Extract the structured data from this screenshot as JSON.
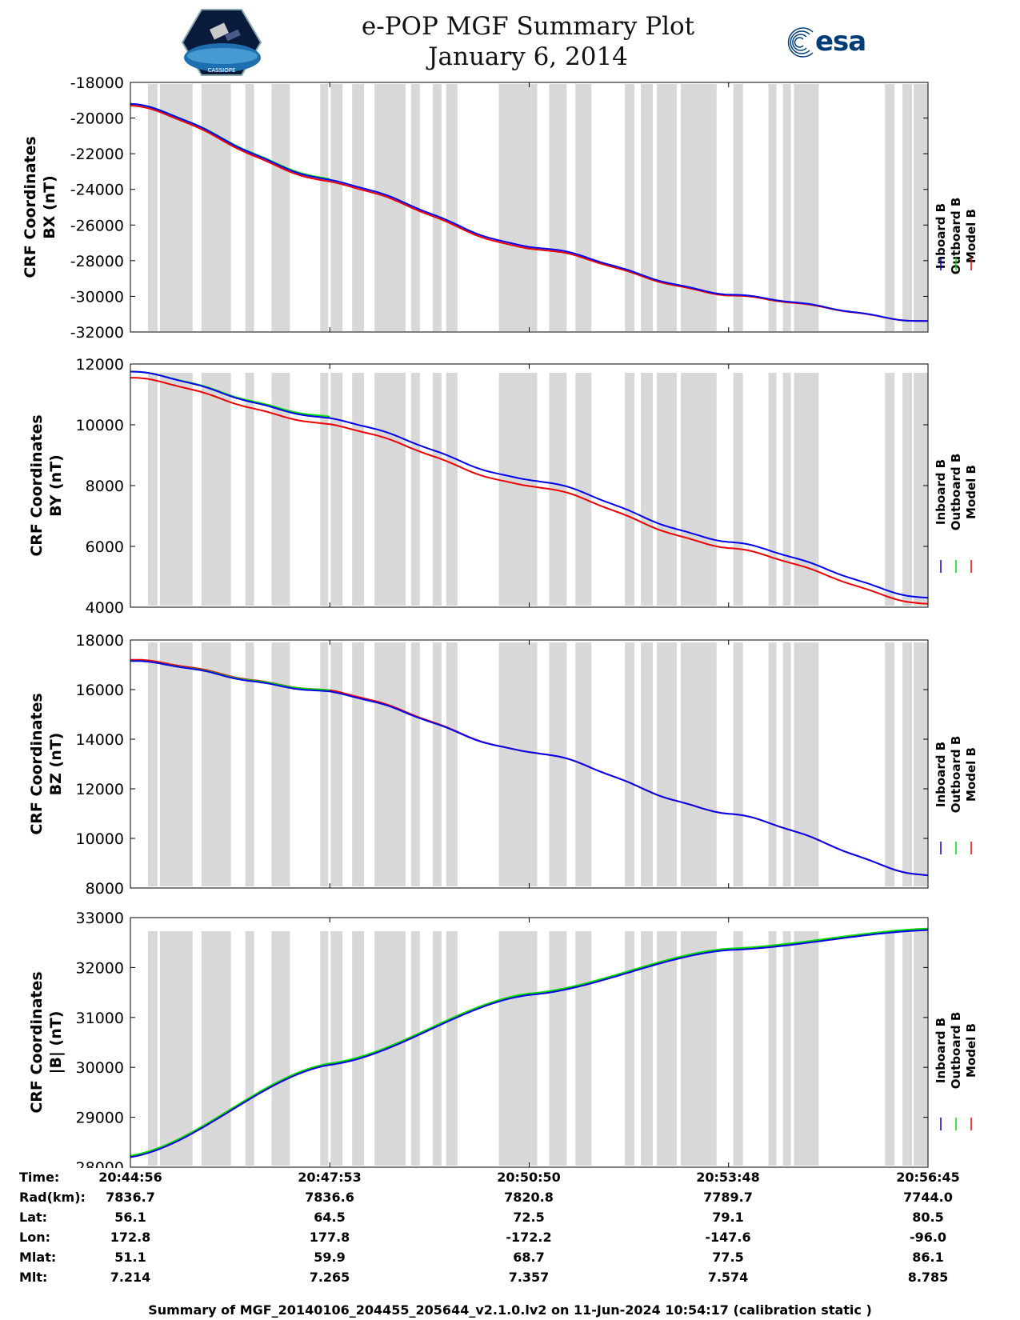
{
  "header": {
    "title_line1": "e-POP MGF Summary Plot",
    "title_line2": "January 6, 2014",
    "left_logo_text": "CASSIOPE",
    "right_logo_text": "esa"
  },
  "colors": {
    "inboard": "#0000ee",
    "outboard": "#00dd00",
    "model": "#ee0000",
    "gap": "#d8d8d8",
    "axis": "#000000"
  },
  "chart_data": [
    {
      "type": "line",
      "ylabel_line1": "CRF Coordinates",
      "ylabel_line2": "BX (nT)",
      "ylim": [
        -32000,
        -18000
      ],
      "yticks": [
        -18000,
        -20000,
        -22000,
        -24000,
        -26000,
        -28000,
        -30000,
        -32000
      ],
      "ytick_labels": [
        "-18000",
        "-20000",
        "-22000",
        "-24000",
        "-26000",
        "-28000",
        "-30000",
        "-32000"
      ],
      "legend": [
        "Inboard B",
        "Outboard B",
        "Model B"
      ],
      "series": [
        {
          "name": "Inboard B",
          "x": [
            0,
            0.25,
            0.5,
            0.75,
            1
          ],
          "values": [
            -19200,
            -23500,
            -27200,
            -29900,
            -31400
          ]
        },
        {
          "name": "Outboard B",
          "x": [
            0,
            0.25
          ],
          "values": [
            -19200,
            -23450
          ]
        },
        {
          "name": "Model B",
          "x": [
            0,
            0.25,
            0.5,
            0.75,
            1
          ],
          "values": [
            -19300,
            -23600,
            -27300,
            -29950,
            -31400
          ]
        }
      ]
    },
    {
      "type": "line",
      "ylabel_line1": "CRF Coordinates",
      "ylabel_line2": "BY (nT)",
      "ylim": [
        4000,
        12000
      ],
      "yticks": [
        12000,
        10000,
        8000,
        6000,
        4000
      ],
      "ytick_labels": [
        "12000",
        "10000",
        "8000",
        "6000",
        "4000"
      ],
      "legend": [
        "Inboard B",
        "Outboard B",
        "Model B"
      ],
      "series": [
        {
          "name": "Inboard B",
          "x": [
            0,
            0.25,
            0.5,
            0.75,
            1
          ],
          "values": [
            11750,
            10200,
            8200,
            6150,
            4300
          ]
        },
        {
          "name": "Outboard B",
          "x": [
            0,
            0.25
          ],
          "values": [
            11750,
            10250
          ]
        },
        {
          "name": "Model B",
          "x": [
            0,
            0.25,
            0.5,
            0.75,
            1
          ],
          "values": [
            11550,
            10000,
            8000,
            5950,
            4100
          ]
        }
      ]
    },
    {
      "type": "line",
      "ylabel_line1": "CRF Coordinates",
      "ylabel_line2": "BZ (nT)",
      "ylim": [
        8000,
        18000
      ],
      "yticks": [
        18000,
        16000,
        14000,
        12000,
        10000,
        8000
      ],
      "ytick_labels": [
        "18000",
        "16000",
        "14000",
        "12000",
        "10000",
        "8000"
      ],
      "legend": [
        "Inboard B",
        "Outboard B",
        "Model B"
      ],
      "series": [
        {
          "name": "Inboard B",
          "x": [
            0,
            0.25,
            0.5,
            0.75,
            1
          ],
          "values": [
            17150,
            15900,
            13500,
            11000,
            8500
          ]
        },
        {
          "name": "Outboard B",
          "x": [
            0,
            0.25
          ],
          "values": [
            17150,
            15950
          ]
        },
        {
          "name": "Model B",
          "x": [
            0,
            0.25,
            0.5,
            0.75,
            1
          ],
          "values": [
            17200,
            15950,
            13500,
            11000,
            8500
          ]
        }
      ]
    },
    {
      "type": "line",
      "ylabel_line1": "CRF Coordinates",
      "ylabel_line2": "|B| (nT)",
      "ylim": [
        28000,
        33000
      ],
      "yticks": [
        33000,
        32000,
        31000,
        30000,
        29000,
        28000
      ],
      "ytick_labels": [
        "33000",
        "32000",
        "31000",
        "30000",
        "29000",
        "28000"
      ],
      "legend": [
        "Inboard B",
        "Outboard B",
        "Model B"
      ],
      "series": [
        {
          "name": "Inboard B",
          "x": [
            0,
            0.25,
            0.5,
            0.75,
            1
          ],
          "values": [
            28200,
            30050,
            31450,
            32350,
            32750
          ]
        },
        {
          "name": "Outboard B",
          "x": [
            0,
            0.25,
            0.5,
            0.75,
            1
          ],
          "values": [
            28230,
            30080,
            31480,
            32380,
            32780
          ]
        },
        {
          "name": "Model B",
          "x": [
            0,
            0.25,
            0.5,
            0.75,
            1
          ],
          "values": [
            28210,
            30060,
            31460,
            32360,
            32760
          ]
        }
      ]
    }
  ],
  "data_gaps": [
    [
      0.022,
      0.034
    ],
    [
      0.037,
      0.078
    ],
    [
      0.089,
      0.126
    ],
    [
      0.144,
      0.155
    ],
    [
      0.177,
      0.2
    ],
    [
      0.238,
      0.248
    ],
    [
      0.251,
      0.266
    ],
    [
      0.278,
      0.293
    ],
    [
      0.306,
      0.345
    ],
    [
      0.352,
      0.363
    ],
    [
      0.379,
      0.39
    ],
    [
      0.396,
      0.41
    ],
    [
      0.462,
      0.51
    ],
    [
      0.525,
      0.547
    ],
    [
      0.558,
      0.578
    ],
    [
      0.62,
      0.632
    ],
    [
      0.64,
      0.655
    ],
    [
      0.66,
      0.685
    ],
    [
      0.69,
      0.735
    ],
    [
      0.756,
      0.768
    ],
    [
      0.8,
      0.81
    ],
    [
      0.818,
      0.828
    ],
    [
      0.832,
      0.863
    ],
    [
      0.946,
      0.958
    ],
    [
      0.968,
      0.98
    ],
    [
      0.982,
      1.0
    ]
  ],
  "x_axis": {
    "tick_fractions": [
      0,
      0.25,
      0.5,
      0.75,
      1
    ]
  },
  "footer": {
    "rows": [
      {
        "label": "Time:",
        "values": [
          "20:44:56",
          "20:47:53",
          "20:50:50",
          "20:53:48",
          "20:56:45"
        ]
      },
      {
        "label": "Rad(km):",
        "values": [
          "7836.7",
          "7836.6",
          "7820.8",
          "7789.7",
          "7744.0"
        ]
      },
      {
        "label": "Lat:",
        "values": [
          "56.1",
          "64.5",
          "72.5",
          "79.1",
          "80.5"
        ]
      },
      {
        "label": "Lon:",
        "values": [
          "172.8",
          "177.8",
          "-172.2",
          "-147.6",
          "-96.0"
        ]
      },
      {
        "label": "Mlat:",
        "values": [
          "51.1",
          "59.9",
          "68.7",
          "77.5",
          "86.1"
        ]
      },
      {
        "label": "Mlt:",
        "values": [
          "7.214",
          "7.265",
          "7.357",
          "7.574",
          "8.785"
        ]
      }
    ],
    "summary": "Summary of MGF_20140106_204455_205644_v2.1.0.lv2 on 11-Jun-2024 10:54:17 (calibration static )"
  }
}
